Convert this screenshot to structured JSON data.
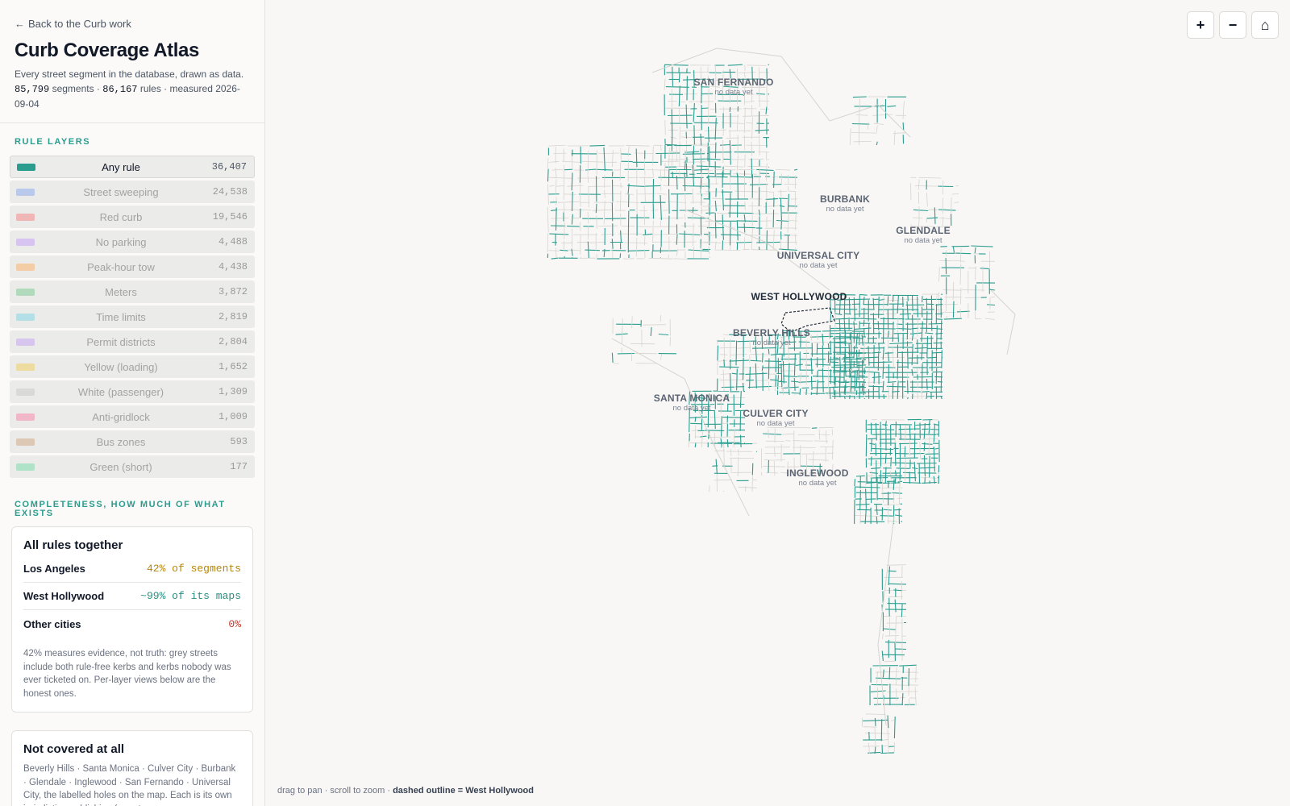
{
  "header": {
    "back_label": "Back to the Curb work",
    "title": "Curb Coverage Atlas",
    "subtitle_pre": "Every street segment in the database, drawn as data.",
    "segments_count": "85,799",
    "segments_label": "segments ·",
    "rules_count": "86,167",
    "rules_label": "rules · measured 2026-09-04"
  },
  "layers_title": "Rule layers",
  "layers": [
    {
      "label": "Any rule",
      "count": "36,407",
      "color": "#2a9d8f",
      "active": true
    },
    {
      "label": "Street sweeping",
      "count": "24,538",
      "color": "#b9c9ec"
    },
    {
      "label": "Red curb",
      "count": "19,546",
      "color": "#f0b5b5"
    },
    {
      "label": "No parking",
      "count": "4,488",
      "color": "#d7c4f0"
    },
    {
      "label": "Peak-hour tow",
      "count": "4,438",
      "color": "#f3cda5"
    },
    {
      "label": "Meters",
      "count": "3,872",
      "color": "#b1d9bb"
    },
    {
      "label": "Time limits",
      "count": "2,819",
      "color": "#b3dfe6"
    },
    {
      "label": "Permit districts",
      "count": "2,804",
      "color": "#d6c6ee"
    },
    {
      "label": "Yellow (loading)",
      "count": "1,652",
      "color": "#ecdca0"
    },
    {
      "label": "White (passenger)",
      "count": "1,309",
      "color": "#d9d9d9"
    },
    {
      "label": "Anti-gridlock",
      "count": "1,009",
      "color": "#f1b7c8"
    },
    {
      "label": "Bus zones",
      "count": "593",
      "color": "#ddc8b6"
    },
    {
      "label": "Green (short)",
      "count": "177",
      "color": "#aee3c8"
    }
  ],
  "completeness_title": "Completeness, how much of what exists",
  "card_all": {
    "title": "All rules together",
    "rows": [
      {
        "name": "Los Angeles",
        "value": "42% of segments",
        "color": "#b7860b"
      },
      {
        "name": "West Hollywood",
        "value": "~99% of its maps",
        "color": "#2a8f80"
      },
      {
        "name": "Other cities",
        "value": "0%",
        "color": "#c0392b"
      }
    ],
    "note": "42% measures evidence, not truth: grey streets include both rule-free kerbs and kerbs nobody was ever ticketed on. Per-layer views below are the honest ones."
  },
  "card_uncovered": {
    "title": "Not covered at all",
    "note": "Beverly Hills · Santa Monica · Culver City · Burbank · Glendale · Inglewood · San Fernando · Universal City, the labelled holes on the map. Each is its own jurisdiction publishing (or not"
  },
  "map": {
    "zoom_in": "+",
    "zoom_out": "−",
    "home": "⌂",
    "hint_pre": "drag to pan · scroll to zoom ·",
    "hint_bold": "dashed outline = West Hollywood",
    "cities": [
      {
        "name": "SAN FERNANDO",
        "sub": "no data yet"
      },
      {
        "name": "BURBANK",
        "sub": "no data yet"
      },
      {
        "name": "GLENDALE",
        "sub": "no data yet"
      },
      {
        "name": "UNIVERSAL CITY",
        "sub": "no data yet"
      },
      {
        "name": "WEST HOLLYWOOD",
        "sub": ""
      },
      {
        "name": "BEVERLY HILLS",
        "sub": "no data yet"
      },
      {
        "name": "SANTA MONICA",
        "sub": "no data yet"
      },
      {
        "name": "CULVER CITY",
        "sub": "no data yet"
      },
      {
        "name": "INGLEWOOD",
        "sub": "no data yet"
      }
    ],
    "covered_color": "#2a9d8f",
    "uncovered_color": "#d6d4cf"
  }
}
